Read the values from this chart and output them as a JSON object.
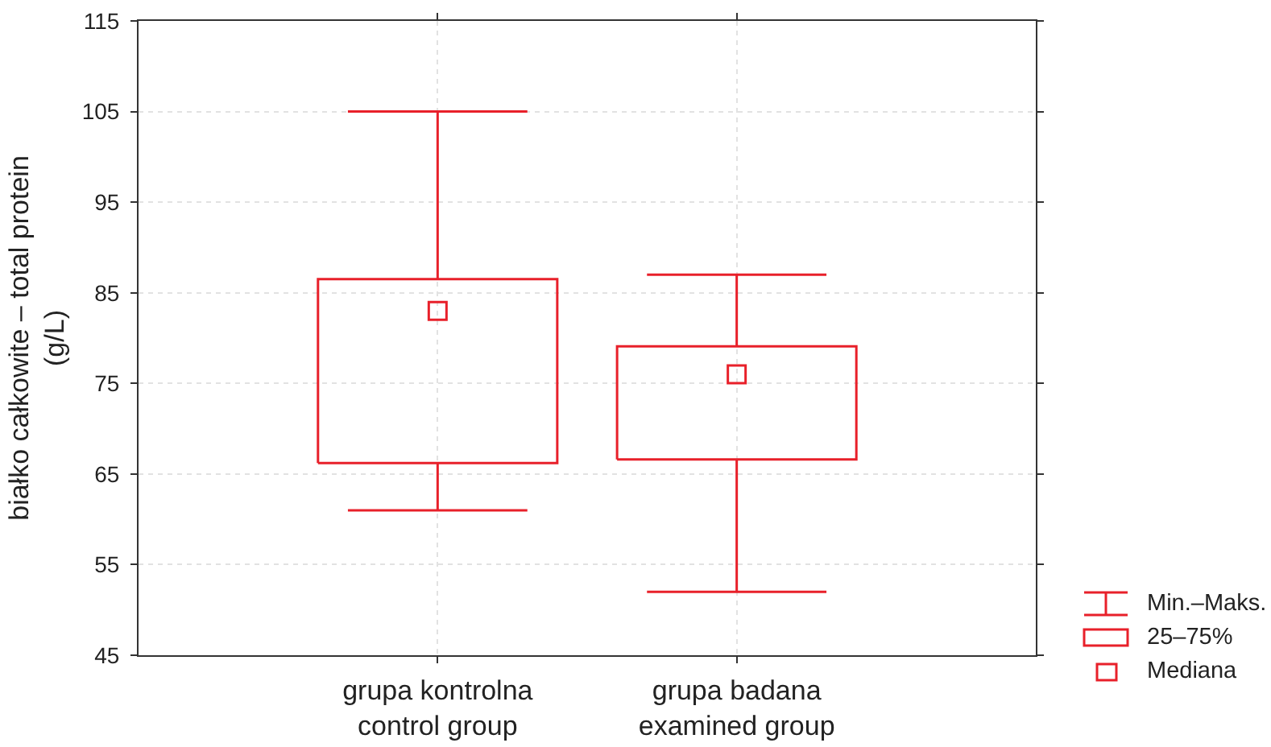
{
  "chart_data": {
    "type": "box",
    "ylabel": "białko całkowite – total protein\n(g/L)",
    "categories": [
      "grupa kontrolna\ncontrol group",
      "grupa badana\nexamined group"
    ],
    "series": [
      {
        "color": "#e8202a",
        "boxes": [
          {
            "low": 61,
            "q1": 66.2,
            "median": 83,
            "q3": 86.5,
            "high": 105
          },
          {
            "low": 52,
            "q1": 66.6,
            "median": 76,
            "q3": 79.1,
            "high": 87
          }
        ]
      }
    ],
    "ylim": [
      45,
      115
    ],
    "yticks": [
      45,
      55,
      65,
      75,
      85,
      95,
      105,
      115
    ],
    "grid": true,
    "marker": "square",
    "annotations": [
      "Min.–Maks.",
      "25–75%",
      "Mediana"
    ]
  }
}
